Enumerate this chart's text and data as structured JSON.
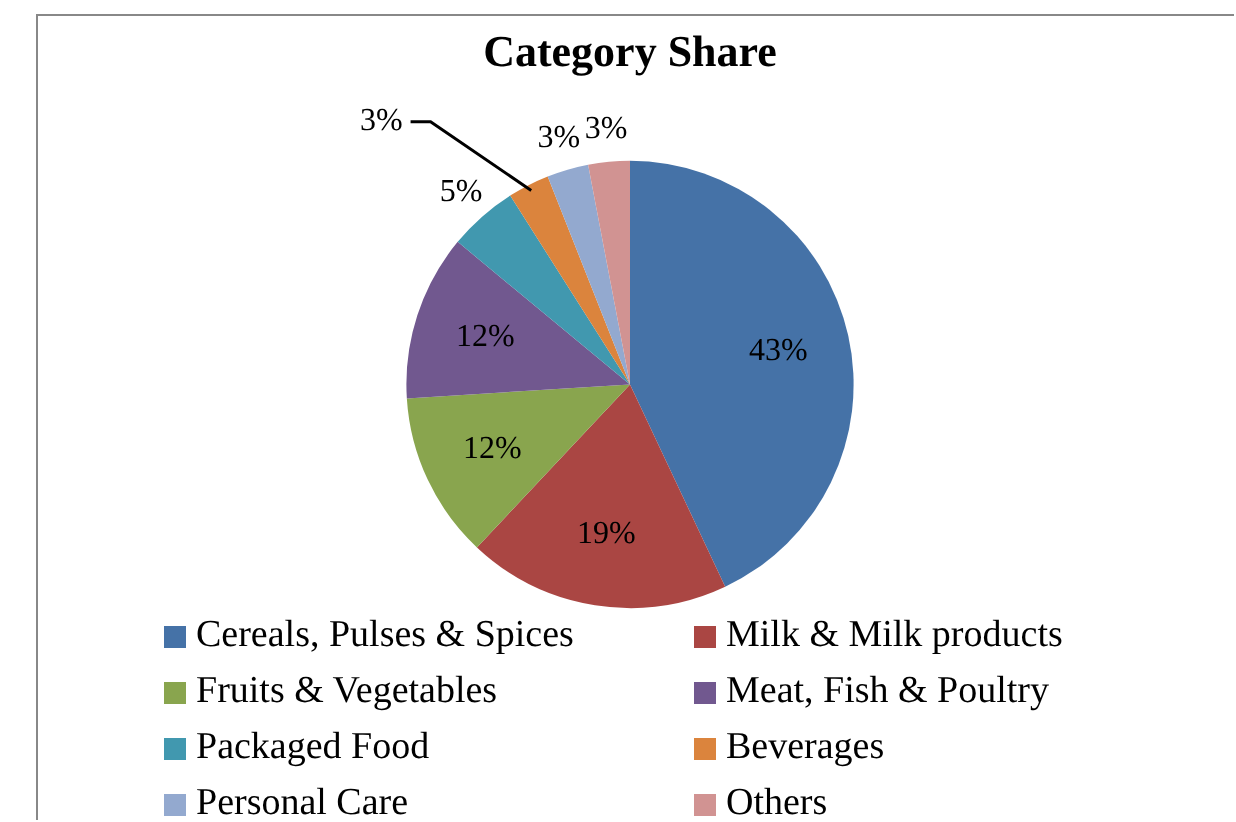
{
  "chart_data": {
    "type": "pie",
    "title": "Category Share",
    "categories": [
      "Cereals, Pulses & Spices",
      "Milk & Milk products",
      "Fruits & Vegetables",
      "Meat, Fish & Poultry",
      "Packaged Food",
      "Beverages",
      "Personal Care",
      "Others"
    ],
    "values": [
      43,
      19,
      12,
      12,
      5,
      3,
      3,
      3
    ],
    "colors": [
      "#4572a7",
      "#aa4643",
      "#89a54e",
      "#71588f",
      "#4198af",
      "#db843d",
      "#93a9cf",
      "#d19392"
    ],
    "value_labels": [
      "43%",
      "19%",
      "12%",
      "12%",
      "5%",
      "3%",
      "3%",
      "3%"
    ],
    "legend": "bottom"
  }
}
